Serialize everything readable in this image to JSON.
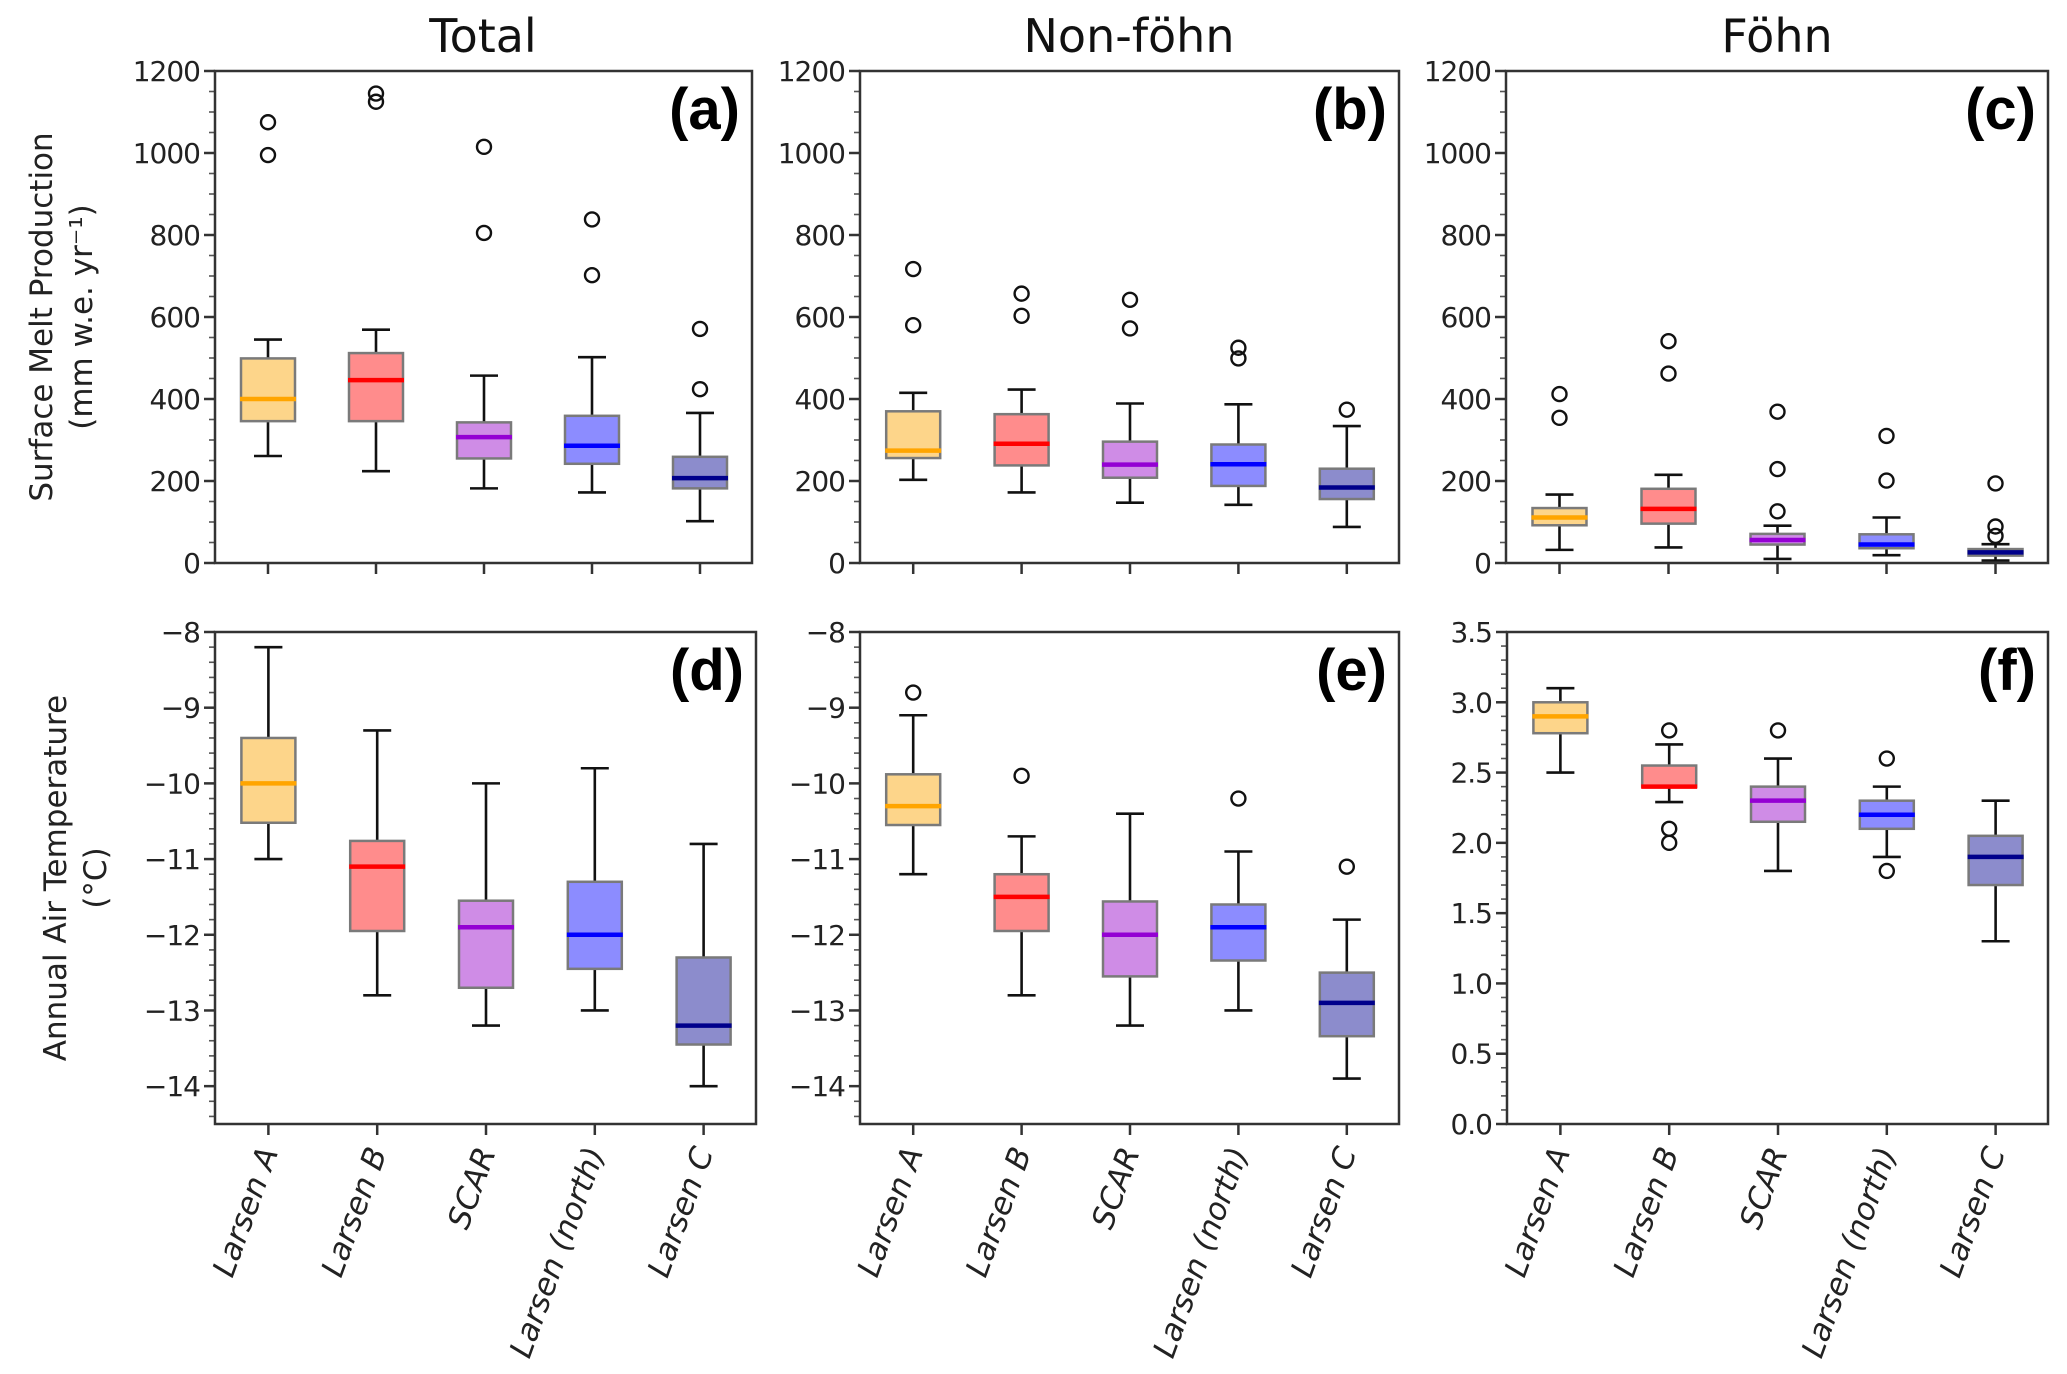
{
  "figure": {
    "column_titles": [
      "Total",
      "Non-föhn",
      "Föhn"
    ],
    "row_ylabels": [
      [
        "Surface Melt Production",
        "(mm w.e. yr⁻¹)"
      ],
      [
        "Annual Air Temperature",
        "(°C)"
      ]
    ]
  },
  "chart_data": [
    {
      "type": "boxplot",
      "panel_label": "(a)",
      "title": "Total",
      "ylabel": "Surface Melt Production (mm w.e. yr-1)",
      "ylim": [
        0,
        1200
      ],
      "yticks": [
        0,
        200,
        400,
        600,
        800,
        1000,
        1200
      ],
      "ytick_labels": [
        "0",
        "200",
        "400",
        "600",
        "800",
        "1000",
        "1200"
      ],
      "minor_step": 50,
      "categories": [
        "Larsen A",
        "Larsen B",
        "SCAR",
        "Larsen (north)",
        "Larsen C"
      ],
      "show_xticklabels": false,
      "boxes": [
        {
          "whislo": 261,
          "q1": 346,
          "med": 400,
          "q3": 499,
          "whishi": 545,
          "fliers": [
            995,
            1075
          ]
        },
        {
          "whislo": 224,
          "q1": 346,
          "med": 446,
          "q3": 512,
          "whishi": 569,
          "fliers": [
            1125,
            1145
          ]
        },
        {
          "whislo": 182,
          "q1": 255,
          "med": 307,
          "q3": 343,
          "whishi": 457,
          "fliers": [
            805,
            1015
          ]
        },
        {
          "whislo": 172,
          "q1": 242,
          "med": 286,
          "q3": 359,
          "whishi": 502,
          "fliers": [
            702,
            838
          ]
        },
        {
          "whislo": 102,
          "q1": 182,
          "med": 207,
          "q3": 259,
          "whishi": 366,
          "fliers": [
            424,
            571
          ]
        }
      ]
    },
    {
      "type": "boxplot",
      "panel_label": "(b)",
      "title": "Non-föhn",
      "ylim": [
        0,
        1200
      ],
      "yticks": [
        0,
        200,
        400,
        600,
        800,
        1000,
        1200
      ],
      "ytick_labels": [
        "0",
        "200",
        "400",
        "600",
        "800",
        "1000",
        "1200"
      ],
      "minor_step": 50,
      "categories": [
        "Larsen A",
        "Larsen B",
        "SCAR",
        "Larsen (north)",
        "Larsen C"
      ],
      "show_xticklabels": false,
      "boxes": [
        {
          "whislo": 203,
          "q1": 256,
          "med": 274,
          "q3": 370,
          "whishi": 415,
          "fliers": [
            580,
            717
          ]
        },
        {
          "whislo": 172,
          "q1": 238,
          "med": 291,
          "q3": 363,
          "whishi": 423,
          "fliers": [
            603,
            657
          ]
        },
        {
          "whislo": 147,
          "q1": 208,
          "med": 240,
          "q3": 296,
          "whishi": 389,
          "fliers": [
            572,
            642
          ]
        },
        {
          "whislo": 142,
          "q1": 188,
          "med": 241,
          "q3": 289,
          "whishi": 387,
          "fliers": [
            499,
            525
          ]
        },
        {
          "whislo": 88,
          "q1": 156,
          "med": 184,
          "q3": 230,
          "whishi": 334,
          "fliers": [
            374
          ]
        }
      ]
    },
    {
      "type": "boxplot",
      "panel_label": "(c)",
      "title": "Föhn",
      "ylim": [
        0,
        1200
      ],
      "yticks": [
        0,
        200,
        400,
        600,
        800,
        1000,
        1200
      ],
      "ytick_labels": [
        "0",
        "200",
        "400",
        "600",
        "800",
        "1000",
        "1200"
      ],
      "minor_step": 50,
      "categories": [
        "Larsen A",
        "Larsen B",
        "SCAR",
        "Larsen (north)",
        "Larsen C"
      ],
      "show_xticklabels": false,
      "boxes": [
        {
          "whislo": 32,
          "q1": 92,
          "med": 111,
          "q3": 134,
          "whishi": 167,
          "fliers": [
            354,
            412
          ]
        },
        {
          "whislo": 38,
          "q1": 96,
          "med": 132,
          "q3": 181,
          "whishi": 215,
          "fliers": [
            462,
            541
          ]
        },
        {
          "whislo": 10,
          "q1": 45,
          "med": 56,
          "q3": 71,
          "whishi": 91,
          "fliers": [
            126,
            229,
            369
          ]
        },
        {
          "whislo": 19,
          "q1": 36,
          "med": 45,
          "q3": 70,
          "whishi": 111,
          "fliers": [
            201,
            310
          ]
        },
        {
          "whislo": 6,
          "q1": 18,
          "med": 26,
          "q3": 34,
          "whishi": 46,
          "fliers": [
            66,
            89,
            194
          ]
        }
      ]
    },
    {
      "type": "boxplot",
      "panel_label": "(d)",
      "ylabel": "Annual Air Temperature (°C)",
      "ylim": [
        -14.5,
        -8
      ],
      "yticks": [
        -14,
        -13,
        -12,
        -11,
        -10,
        -9,
        -8
      ],
      "ytick_labels": [
        "−14",
        "−13",
        "−12",
        "−11",
        "−10",
        "−9",
        "−8"
      ],
      "minor_step": 0.2,
      "categories": [
        "Larsen A",
        "Larsen B",
        "SCAR",
        "Larsen (north)",
        "Larsen C"
      ],
      "show_xticklabels": true,
      "boxes": [
        {
          "whislo": -11.0,
          "q1": -10.52,
          "med": -10.0,
          "q3": -9.4,
          "whishi": -8.2,
          "fliers": []
        },
        {
          "whislo": -12.8,
          "q1": -11.95,
          "med": -11.1,
          "q3": -10.76,
          "whishi": -9.3,
          "fliers": []
        },
        {
          "whislo": -13.2,
          "q1": -12.7,
          "med": -11.9,
          "q3": -11.55,
          "whishi": -10.0,
          "fliers": []
        },
        {
          "whislo": -13.0,
          "q1": -12.45,
          "med": -12.0,
          "q3": -11.3,
          "whishi": -9.8,
          "fliers": []
        },
        {
          "whislo": -14.0,
          "q1": -13.45,
          "med": -13.2,
          "q3": -12.3,
          "whishi": -10.8,
          "fliers": []
        }
      ]
    },
    {
      "type": "boxplot",
      "panel_label": "(e)",
      "ylim": [
        -14.5,
        -8
      ],
      "yticks": [
        -14,
        -13,
        -12,
        -11,
        -10,
        -9,
        -8
      ],
      "ytick_labels": [
        "−14",
        "−13",
        "−12",
        "−11",
        "−10",
        "−9",
        "−8"
      ],
      "minor_step": 0.2,
      "categories": [
        "Larsen A",
        "Larsen B",
        "SCAR",
        "Larsen (north)",
        "Larsen C"
      ],
      "show_xticklabels": true,
      "boxes": [
        {
          "whislo": -11.2,
          "q1": -10.55,
          "med": -10.3,
          "q3": -9.88,
          "whishi": -9.1,
          "fliers": [
            -8.8
          ]
        },
        {
          "whislo": -12.8,
          "q1": -11.95,
          "med": -11.5,
          "q3": -11.2,
          "whishi": -10.7,
          "fliers": [
            -9.9
          ]
        },
        {
          "whislo": -13.2,
          "q1": -12.55,
          "med": -12.0,
          "q3": -11.56,
          "whishi": -10.4,
          "fliers": []
        },
        {
          "whislo": -13.0,
          "q1": -12.34,
          "med": -11.9,
          "q3": -11.6,
          "whishi": -10.9,
          "fliers": [
            -10.2
          ]
        },
        {
          "whislo": -13.9,
          "q1": -13.34,
          "med": -12.9,
          "q3": -12.5,
          "whishi": -11.8,
          "fliers": [
            -11.1
          ]
        }
      ]
    },
    {
      "type": "boxplot",
      "panel_label": "(f)",
      "ylim": [
        0,
        3.5
      ],
      "yticks": [
        0,
        0.5,
        1.0,
        1.5,
        2.0,
        2.5,
        3.0,
        3.5
      ],
      "ytick_labels": [
        "0.0",
        "0.5",
        "1.0",
        "1.5",
        "2.0",
        "2.5",
        "3.0",
        "3.5"
      ],
      "minor_step": 0.1,
      "categories": [
        "Larsen A",
        "Larsen B",
        "SCAR",
        "Larsen (north)",
        "Larsen C"
      ],
      "show_xticklabels": true,
      "boxes": [
        {
          "whislo": 2.5,
          "q1": 2.78,
          "med": 2.9,
          "q3": 3.0,
          "whishi": 3.1,
          "fliers": []
        },
        {
          "whislo": 2.29,
          "q1": 2.4,
          "med": 2.4,
          "q3": 2.55,
          "whishi": 2.7,
          "fliers": [
            2.0,
            2.1,
            2.8
          ]
        },
        {
          "whislo": 1.8,
          "q1": 2.15,
          "med": 2.3,
          "q3": 2.4,
          "whishi": 2.6,
          "fliers": [
            2.8
          ]
        },
        {
          "whislo": 1.9,
          "q1": 2.1,
          "med": 2.2,
          "q3": 2.3,
          "whishi": 2.4,
          "fliers": [
            1.8,
            2.6
          ]
        },
        {
          "whislo": 1.3,
          "q1": 1.7,
          "med": 1.9,
          "q3": 2.05,
          "whishi": 2.3,
          "fliers": []
        }
      ]
    }
  ],
  "series_colors": [
    {
      "name": "Larsen A",
      "fill": "#FDD58A",
      "median": "#FFA500"
    },
    {
      "name": "Larsen B",
      "fill": "#FF8C8C",
      "median": "#FF0000"
    },
    {
      "name": "SCAR",
      "fill": "#CF8CE6",
      "median": "#9400D3"
    },
    {
      "name": "Larsen (north)",
      "fill": "#8C8CFF",
      "median": "#0000FF"
    },
    {
      "name": "Larsen C",
      "fill": "#8C8CCC",
      "median": "#00008B"
    }
  ]
}
